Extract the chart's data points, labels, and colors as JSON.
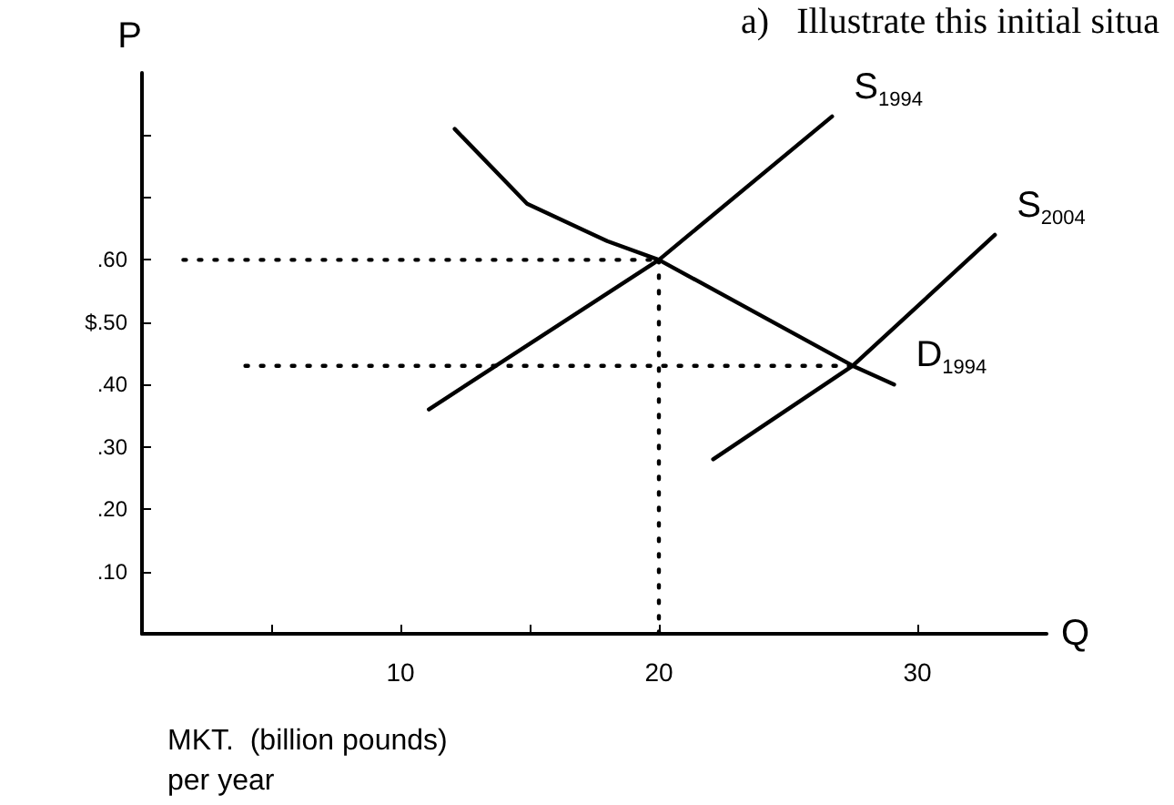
{
  "chart_data": {
    "type": "line",
    "xlabel": "Q",
    "ylabel": "P",
    "annotations": [
      "a)   Illustrate this initial situa",
      "MKT.  (billion pounds)\nper year"
    ],
    "xlim": [
      0,
      35
    ],
    "ylim": [
      0,
      0.9
    ],
    "xticks": [
      {
        "value": 5,
        "label": null
      },
      10,
      {
        "value": 15,
        "label": null
      },
      20,
      30
    ],
    "yticks": [
      {
        "value": 0.1,
        "label": ".10"
      },
      {
        "value": 0.2,
        "label": ".20"
      },
      {
        "value": 0.3,
        "label": ".30"
      },
      {
        "value": 0.4,
        "label": ".40"
      },
      {
        "value": 0.5,
        "label": "$.50"
      },
      {
        "value": 0.6,
        "label": ".60"
      },
      {
        "value": 0.7,
        "label": null
      },
      {
        "value": 0.8,
        "label": null
      }
    ],
    "grid": false,
    "legend": false,
    "marker": "none",
    "series": [
      {
        "name": "S$_{1994}$",
        "color": "#000000",
        "line_style": "solid",
        "x": [
          11.1,
          20,
          26.7
        ],
        "values": [
          0.36,
          0.6,
          0.83
        ]
      },
      {
        "name": "S$_{2004}$",
        "color": "#000000",
        "line_style": "solid",
        "x": [
          22.1,
          27.5,
          33
        ],
        "values": [
          0.28,
          0.43,
          0.64
        ]
      },
      {
        "name": "D$_{1994}$",
        "color": "#000000",
        "line_style": "solid",
        "x": [
          12.1,
          14.9,
          18,
          20,
          27.5,
          29.1
        ],
        "values": [
          0.81,
          0.69,
          0.63,
          0.6,
          0.43,
          0.4
        ]
      },
      {
        "color": "#000000",
        "line_style": "dotted",
        "x": [
          1.6,
          20
        ],
        "values": [
          0.6,
          0.6
        ]
      },
      {
        "color": "#000000",
        "line_style": "dotted",
        "x": [
          20,
          20
        ],
        "values": [
          0.6,
          0
        ]
      },
      {
        "color": "#000000",
        "line_style": "dotted",
        "x": [
          4,
          27.5
        ],
        "values": [
          0.43,
          0.43
        ]
      }
    ]
  }
}
